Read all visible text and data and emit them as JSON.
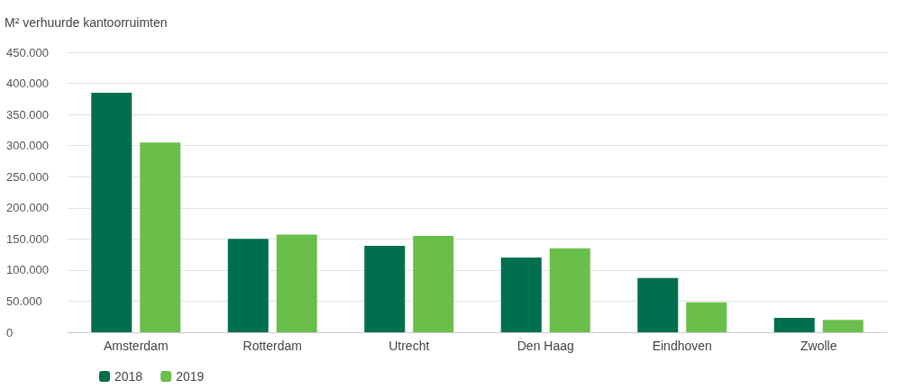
{
  "chart_data": {
    "type": "bar",
    "ylabel": "M² verhuurde kantoorruimten",
    "categories": [
      "Amsterdam",
      "Rotterdam",
      "Utrecht",
      "Den Haag",
      "Eindhoven",
      "Zwolle"
    ],
    "series": [
      {
        "name": "2018",
        "color": "#006f4e",
        "values": [
          385000,
          150000,
          139000,
          120000,
          87000,
          23000
        ]
      },
      {
        "name": "2019",
        "color": "#6abf4b",
        "values": [
          305000,
          157000,
          155000,
          135000,
          48000,
          20000
        ]
      }
    ],
    "ylim": [
      0,
      450000
    ],
    "yticks": [
      {
        "value": 0,
        "label": "0"
      },
      {
        "value": 50000,
        "label": "50.000"
      },
      {
        "value": 100000,
        "label": "100.000"
      },
      {
        "value": 150000,
        "label": "150.000"
      },
      {
        "value": 200000,
        "label": "200.000"
      },
      {
        "value": 250000,
        "label": "250.000"
      },
      {
        "value": 300000,
        "label": "300.000"
      },
      {
        "value": 350000,
        "label": "350.000"
      },
      {
        "value": 400000,
        "label": "400.000"
      },
      {
        "value": 450000,
        "label": "450.000"
      }
    ],
    "grid": "y",
    "legend": "bottom left"
  }
}
